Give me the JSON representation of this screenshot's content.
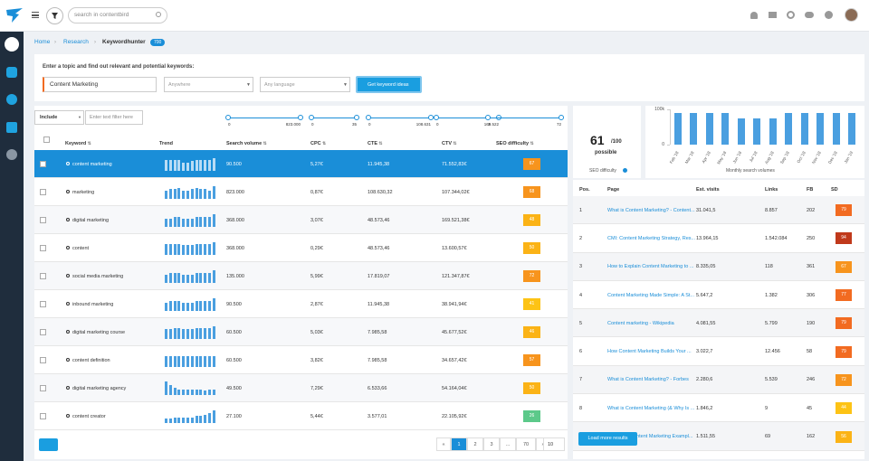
{
  "header": {
    "search_placeholder": "search in contentbird"
  },
  "breadcrumb": {
    "items": [
      "Home",
      "Research",
      "Keywordhunter"
    ],
    "badge": "700"
  },
  "search_form": {
    "prompt": "Enter a topic and find out relevant and potential keywords:",
    "topic": "Content Marketing",
    "location": "Anywhere",
    "language": "Any language",
    "button": "Get keyword ideas"
  },
  "filters": {
    "include": "Include",
    "placeholder": "Enter text filter here",
    "sliders": [
      {
        "min": "0",
        "max": "823.000"
      },
      {
        "min": "0",
        "max": "35"
      },
      {
        "min": "0",
        "max": "108.631"
      },
      {
        "min": "0",
        "max": "169.522"
      },
      {
        "min": "3",
        "max": "72"
      }
    ]
  },
  "keyword_table": {
    "columns": [
      "Keyword",
      "Trend",
      "Search volume",
      "CPC",
      "CTE",
      "CTV",
      "SEO difficulty"
    ],
    "rows": [
      {
        "keyword": "content marketing",
        "trend": [
          8,
          8,
          8,
          8,
          6,
          6,
          7,
          8,
          8,
          8,
          8,
          9
        ],
        "search_volume": "90.500",
        "cpc": "5,27€",
        "cte": "11.945,38",
        "ctv": "71.552,83€",
        "seo_difficulty": "67",
        "seo_color": "#f7941d"
      },
      {
        "keyword": "marketing",
        "trend": [
          6,
          7,
          7,
          8,
          6,
          6,
          7,
          8,
          7,
          7,
          6,
          9
        ],
        "search_volume": "823.000",
        "cpc": "0,87€",
        "cte": "108.630,32",
        "ctv": "107.344,02€",
        "seo_difficulty": "68",
        "seo_color": "#f7941d"
      },
      {
        "keyword": "digital marketing",
        "trend": [
          6,
          6,
          7,
          7,
          6,
          6,
          6,
          7,
          7,
          7,
          7,
          9
        ],
        "search_volume": "368.000",
        "cpc": "3,07€",
        "cte": "48.573,46",
        "ctv": "169.521,38€",
        "seo_difficulty": "48",
        "seo_color": "#fbb316"
      },
      {
        "keyword": "content",
        "trend": [
          8,
          8,
          8,
          8,
          7,
          7,
          7,
          8,
          8,
          8,
          8,
          9
        ],
        "search_volume": "368.000",
        "cpc": "0,29€",
        "cte": "48.573,46",
        "ctv": "13.600,57€",
        "seo_difficulty": "50",
        "seo_color": "#fbb316"
      },
      {
        "keyword": "social media marketing",
        "trend": [
          6,
          7,
          7,
          7,
          6,
          6,
          6,
          7,
          7,
          7,
          7,
          9
        ],
        "search_volume": "135.000",
        "cpc": "5,99€",
        "cte": "17.819,07",
        "ctv": "121.347,87€",
        "seo_difficulty": "72",
        "seo_color": "#f7941d"
      },
      {
        "keyword": "inbound marketing",
        "trend": [
          6,
          7,
          7,
          7,
          6,
          6,
          6,
          7,
          7,
          7,
          7,
          9
        ],
        "search_volume": "90.500",
        "cpc": "2,87€",
        "cte": "11.945,38",
        "ctv": "38.941,94€",
        "seo_difficulty": "41",
        "seo_color": "#fdc315"
      },
      {
        "keyword": "digital marketing course",
        "trend": [
          7,
          7,
          8,
          8,
          7,
          7,
          7,
          8,
          8,
          8,
          8,
          9
        ],
        "search_volume": "60.500",
        "cpc": "5,03€",
        "cte": "7.985,58",
        "ctv": "45.677,52€",
        "seo_difficulty": "46",
        "seo_color": "#fbb316"
      },
      {
        "keyword": "content definition",
        "trend": [
          8,
          8,
          8,
          8,
          8,
          8,
          8,
          8,
          8,
          8,
          8,
          8
        ],
        "search_volume": "60.500",
        "cpc": "3,82€",
        "cte": "7.985,58",
        "ctv": "34.657,42€",
        "seo_difficulty": "57",
        "seo_color": "#f7941d"
      },
      {
        "keyword": "digital marketing agency",
        "trend": [
          10,
          7,
          5,
          4,
          4,
          4,
          4,
          4,
          4,
          3,
          4,
          4
        ],
        "search_volume": "49.500",
        "cpc": "7,29€",
        "cte": "6.533,66",
        "ctv": "54.164,04€",
        "seo_difficulty": "50",
        "seo_color": "#fbb316"
      },
      {
        "keyword": "content creator",
        "trend": [
          3,
          3,
          4,
          4,
          4,
          4,
          4,
          5,
          5,
          6,
          7,
          9
        ],
        "search_volume": "27.100",
        "cpc": "5,44€",
        "cte": "3.577,01",
        "ctv": "22.105,92€",
        "seo_difficulty": "26",
        "seo_color": "#5cc98a"
      }
    ]
  },
  "pagination": {
    "pages": [
      "«",
      "1",
      "2",
      "3",
      "...",
      "70",
      "»"
    ],
    "per_page": "10"
  },
  "difficulty_gauge": {
    "value": 61,
    "max": {
      "value": 100,
      "label": "/100"
    },
    "caption": "possible",
    "label": "SEO difficulty",
    "color": "#f7941d"
  },
  "chart_data": {
    "type": "bar",
    "title": "Monthly search volumes",
    "categories": [
      "Feb '18",
      "Mar '18",
      "Apr '18",
      "May '18",
      "Jun '18",
      "Jul '18",
      "Aug '18",
      "Sep '18",
      "Oct '18",
      "Nov '18",
      "Dec '18",
      "Jan '19"
    ],
    "values": [
      90500,
      90500,
      90500,
      90500,
      74000,
      74000,
      74000,
      90500,
      90500,
      90500,
      90500,
      90500
    ],
    "color": "#4a9fe0",
    "ylim": [
      0,
      100000
    ],
    "yticks": [
      0,
      {
        "value": 100000,
        "label": "100k"
      }
    ]
  },
  "serp_table": {
    "columns": [
      "Pos.",
      "Page",
      "Est. visits",
      "Links",
      "FB",
      "SD"
    ],
    "rows": [
      {
        "pos": "1",
        "page": "What is Content Marketing? - Content...",
        "visits": "31.041,5",
        "links": "8.857",
        "fb": "202",
        "sd": "79",
        "sd_color": "#f26b21"
      },
      {
        "pos": "2",
        "page": "CMI: Content Marketing Strategy, Res...",
        "visits": "13.964,15",
        "links": "1.542.084",
        "fb": "250",
        "sd": "94",
        "sd_color": "#c0391b"
      },
      {
        "pos": "3",
        "page": "How to Explain Content Marketing to ...",
        "visits": "8.335,05",
        "links": "118",
        "fb": "361",
        "sd": "67",
        "sd_color": "#f7941d"
      },
      {
        "pos": "4",
        "page": "Content Marketing Made Simple: A St...",
        "visits": "5.647,2",
        "links": "1.382",
        "fb": "306",
        "sd": "77",
        "sd_color": "#f26b21"
      },
      {
        "pos": "5",
        "page": "Content marketing - Wikipedia",
        "visits": "4.081,55",
        "links": "5.799",
        "fb": "190",
        "sd": "79",
        "sd_color": "#f26b21"
      },
      {
        "pos": "6",
        "page": "How Content Marketing Builds Your ...",
        "visits": "3.022,7",
        "links": "12.456",
        "fb": "58",
        "sd": "79",
        "sd_color": "#f26b21"
      },
      {
        "pos": "7",
        "page": "What is Content Marketing? - Forbes",
        "visits": "2.280,6",
        "links": "5.539",
        "fb": "246",
        "sd": "72",
        "sd_color": "#f7941d"
      },
      {
        "pos": "8",
        "page": "What is Content Marketing (& Why Is ...",
        "visits": "1.846,2",
        "links": "9",
        "fb": "45",
        "sd": "44",
        "sd_color": "#fdc315"
      },
      {
        "pos": "9",
        "page": "25 Clever Content Marketing Exampl...",
        "visits": "1.511,55",
        "links": "69",
        "fb": "162",
        "sd": "56",
        "sd_color": "#fbb316"
      }
    ],
    "button": "Load more results"
  }
}
